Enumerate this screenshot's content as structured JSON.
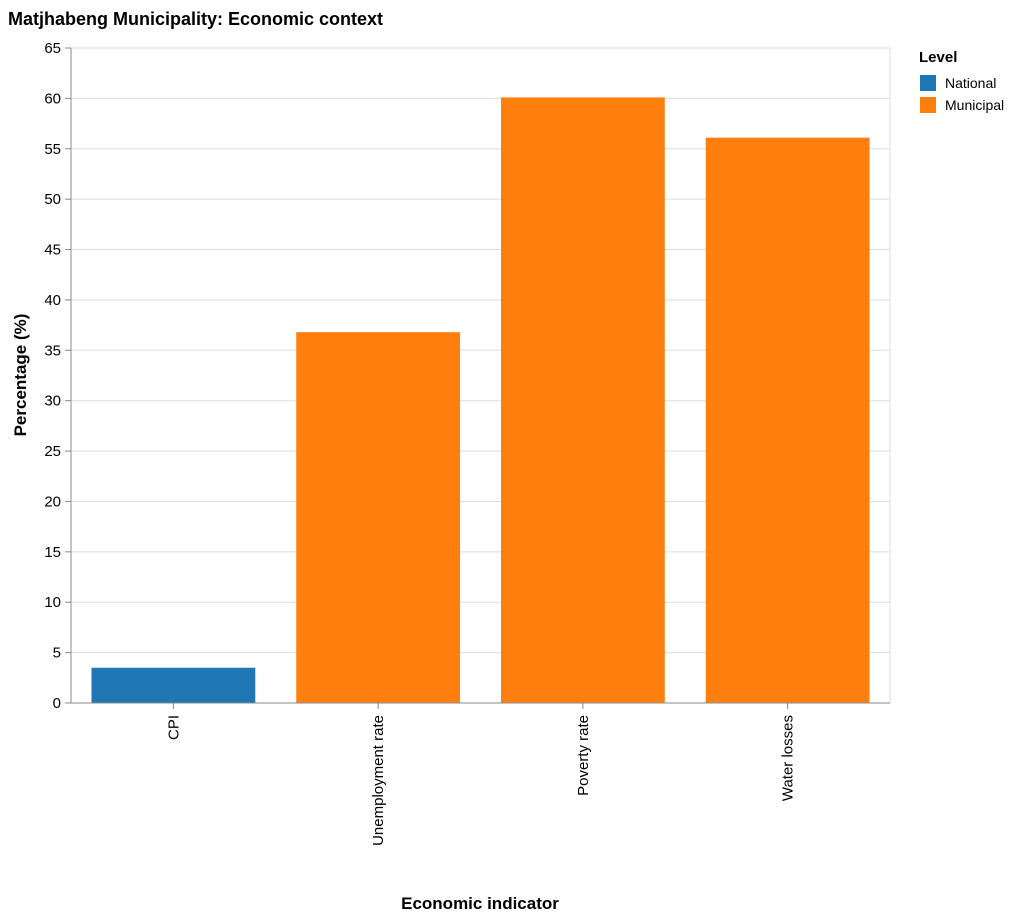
{
  "chart_data": {
    "type": "bar",
    "title": "Matjhabeng Municipality: Economic context",
    "xlabel": "Economic indicator",
    "ylabel": "Percentage (%)",
    "ylim": [
      0,
      65
    ],
    "yticks": [
      0,
      5,
      10,
      15,
      20,
      25,
      30,
      35,
      40,
      45,
      50,
      55,
      60,
      65
    ],
    "grid": true,
    "categories": [
      "CPI",
      "Unemployment rate",
      "Poverty rate",
      "Water losses"
    ],
    "values": [
      3.5,
      36.8,
      60.1,
      56.1
    ],
    "levels": [
      "National",
      "Municipal",
      "Municipal",
      "Municipal"
    ],
    "legend": {
      "title": "Level",
      "placement": "right",
      "entries": [
        {
          "label": "National",
          "color": "#1f77b4"
        },
        {
          "label": "Municipal",
          "color": "#ff7f0e"
        }
      ]
    }
  }
}
